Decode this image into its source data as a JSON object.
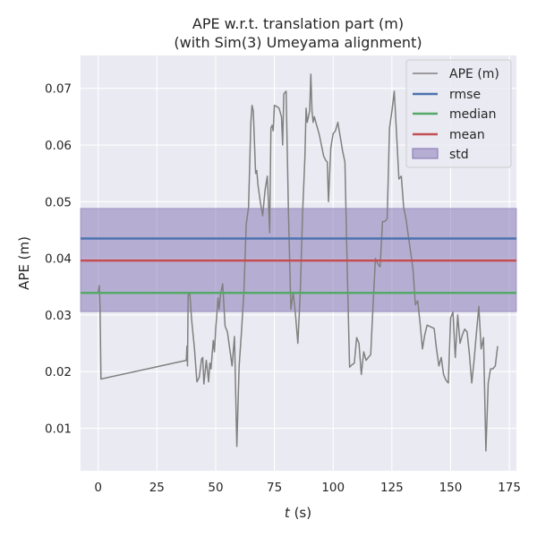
{
  "chart_data": {
    "type": "line",
    "title": "APE w.r.t. translation part (m)",
    "subtitle": "(with Sim(3) Umeyama alignment)",
    "xlabel_italic": "t",
    "xlabel_rest": " (s)",
    "ylabel": "APE (m)",
    "xlim": [
      -7.5,
      178
    ],
    "ylim": [
      0.0025,
      0.0758
    ],
    "xticks": [
      0,
      25,
      50,
      75,
      100,
      125,
      150,
      175
    ],
    "yticks": [
      0.01,
      0.02,
      0.03,
      0.04,
      0.05,
      0.06,
      0.07
    ],
    "ytick_labels": [
      "0.01",
      "0.02",
      "0.03",
      "0.04",
      "0.05",
      "0.06",
      "0.07"
    ],
    "grid": true,
    "legend_position": "top-right",
    "legend": [
      "APE (m)",
      "rmse",
      "median",
      "mean",
      "std"
    ],
    "colors": {
      "background": "#eaeaf2",
      "grid": "#ffffff",
      "ape": "#808080",
      "rmse": "#4c72b0",
      "median": "#55a868",
      "mean": "#c44e52",
      "std": "#8172b2"
    },
    "stats": {
      "rmse": 0.0435,
      "median": 0.0339,
      "mean": 0.0396,
      "std_low": 0.0306,
      "std_high": 0.0488
    },
    "series": [
      {
        "name": "APE (m)",
        "x": [
          0.0,
          0.5,
          0.8,
          1.2,
          37.5,
          37.8,
          38.0,
          38.3,
          39.0,
          39.8,
          41.0,
          42.0,
          43.0,
          44.0,
          44.5,
          45.0,
          46.0,
          47.0,
          47.5,
          48.0,
          49.0,
          49.5,
          50.0,
          51.0,
          51.5,
          52.0,
          53.0,
          54.0,
          55.0,
          56.0,
          57.0,
          58.0,
          59.0,
          60.0,
          61.0,
          62.0,
          63.0,
          64.0,
          65.0,
          65.5,
          66.0,
          67.0,
          67.5,
          68.0,
          69.0,
          70.0,
          71.0,
          72.0,
          73.0,
          73.5,
          74.0,
          74.5,
          75.0,
          76.0,
          77.0,
          78.0,
          78.5,
          79.0,
          80.0,
          81.0,
          82.0,
          83.0,
          84.0,
          85.0,
          86.0,
          87.0,
          88.0,
          88.5,
          89.0,
          90.0,
          90.5,
          91.0,
          91.5,
          92.0,
          93.0,
          94.0,
          95.0,
          96.0,
          97.0,
          97.5,
          98.0,
          99.0,
          100.0,
          101.0,
          102.0,
          103.0,
          104.0,
          105.0,
          106.0,
          107.0,
          108.0,
          109.0,
          110.0,
          111.0,
          112.0,
          113.0,
          114.0,
          115.0,
          116.0,
          117.0,
          118.0,
          119.0,
          120.0,
          121.0,
          122.0,
          123.0,
          124.0,
          125.0,
          126.0,
          127.0,
          128.0,
          129.0,
          130.0,
          131.0,
          132.0,
          133.0,
          134.0,
          135.0,
          136.0,
          137.0,
          138.0,
          139.0,
          140.0,
          141.0,
          142.0,
          143.0,
          144.0,
          145.0,
          146.0,
          147.0,
          148.0,
          149.0,
          150.0,
          151.0,
          152.0,
          153.0,
          154.0,
          155.0,
          156.0,
          157.0,
          158.0,
          159.0,
          160.0,
          161.0,
          162.0,
          163.0,
          164.0,
          165.0,
          166.0,
          167.0,
          168.0,
          169.0,
          170.0
        ],
        "y": [
          0.034,
          0.0352,
          0.0312,
          0.0187,
          0.022,
          0.0245,
          0.021,
          0.0335,
          0.0338,
          0.029,
          0.024,
          0.0182,
          0.019,
          0.0222,
          0.0225,
          0.0178,
          0.022,
          0.0182,
          0.0215,
          0.0205,
          0.0255,
          0.0235,
          0.0275,
          0.033,
          0.031,
          0.0335,
          0.0355,
          0.028,
          0.027,
          0.024,
          0.021,
          0.0262,
          0.0068,
          0.021,
          0.027,
          0.034,
          0.046,
          0.049,
          0.064,
          0.067,
          0.066,
          0.055,
          0.0555,
          0.053,
          0.05,
          0.0475,
          0.052,
          0.0545,
          0.0445,
          0.063,
          0.0635,
          0.0625,
          0.067,
          0.0668,
          0.0665,
          0.065,
          0.06,
          0.069,
          0.0695,
          0.048,
          0.031,
          0.034,
          0.03,
          0.025,
          0.034,
          0.048,
          0.058,
          0.0665,
          0.064,
          0.066,
          0.0725,
          0.066,
          0.064,
          0.065,
          0.0635,
          0.062,
          0.06,
          0.058,
          0.0572,
          0.057,
          0.05,
          0.0595,
          0.062,
          0.0625,
          0.064,
          0.0615,
          0.059,
          0.057,
          0.038,
          0.0208,
          0.0212,
          0.0215,
          0.026,
          0.025,
          0.0195,
          0.0235,
          0.022,
          0.0225,
          0.023,
          0.032,
          0.04,
          0.039,
          0.0385,
          0.0465,
          0.0465,
          0.047,
          0.063,
          0.066,
          0.0695,
          0.062,
          0.054,
          0.0545,
          0.049,
          0.047,
          0.044,
          0.041,
          0.038,
          0.0318,
          0.0325,
          0.0285,
          0.024,
          0.0265,
          0.0282,
          0.028,
          0.0278,
          0.0276,
          0.024,
          0.021,
          0.0225,
          0.0195,
          0.0185,
          0.018,
          0.0295,
          0.0305,
          0.0225,
          0.03,
          0.025,
          0.0265,
          0.0275,
          0.027,
          0.023,
          0.018,
          0.022,
          0.027,
          0.0315,
          0.024,
          0.026,
          0.006,
          0.018,
          0.0205,
          0.0205,
          0.021,
          0.0245
        ]
      }
    ]
  }
}
